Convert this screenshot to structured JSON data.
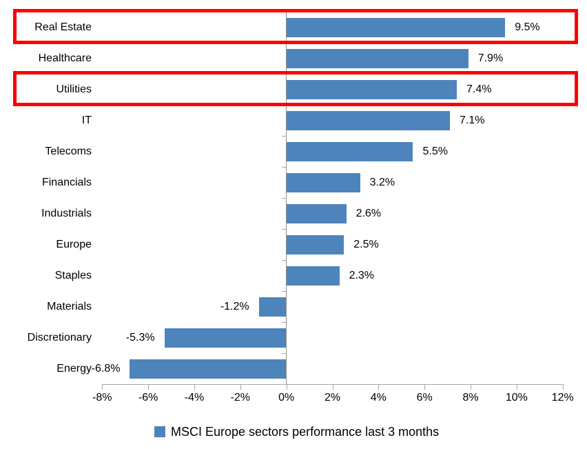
{
  "chart_data": {
    "type": "bar",
    "orientation": "horizontal",
    "title": "",
    "categories": [
      "Real Estate",
      "Healthcare",
      "Utilities",
      "IT",
      "Telecoms",
      "Financials",
      "Industrials",
      "Europe",
      "Staples",
      "Materials",
      "Discretionary",
      "Energy"
    ],
    "values": [
      9.5,
      7.9,
      7.4,
      7.1,
      5.5,
      3.2,
      2.6,
      2.5,
      2.3,
      -1.2,
      -5.3,
      -6.8
    ],
    "value_labels": [
      "9.5%",
      "7.9%",
      "7.4%",
      "7.1%",
      "5.5%",
      "3.2%",
      "2.6%",
      "2.5%",
      "2.3%",
      "-1.2%",
      "-5.3%",
      "-6.8%"
    ],
    "highlighted_categories": [
      "Real Estate",
      "Utilities"
    ],
    "x_axis": {
      "min": -8,
      "max": 12,
      "step": 2,
      "tick_labels": [
        "-8%",
        "-6%",
        "-4%",
        "-2%",
        "0%",
        "2%",
        "4%",
        "6%",
        "8%",
        "10%",
        "12%"
      ]
    },
    "grid": "off",
    "legend": {
      "position": "bottom",
      "label": "MSCI Europe sectors performance last 3 months"
    },
    "colors": {
      "bar": "#4E84BC",
      "highlight_box": "#FE0000",
      "axis": "#A6A6A6",
      "zero_line": "#8F8F8F",
      "text": "#000000"
    }
  }
}
